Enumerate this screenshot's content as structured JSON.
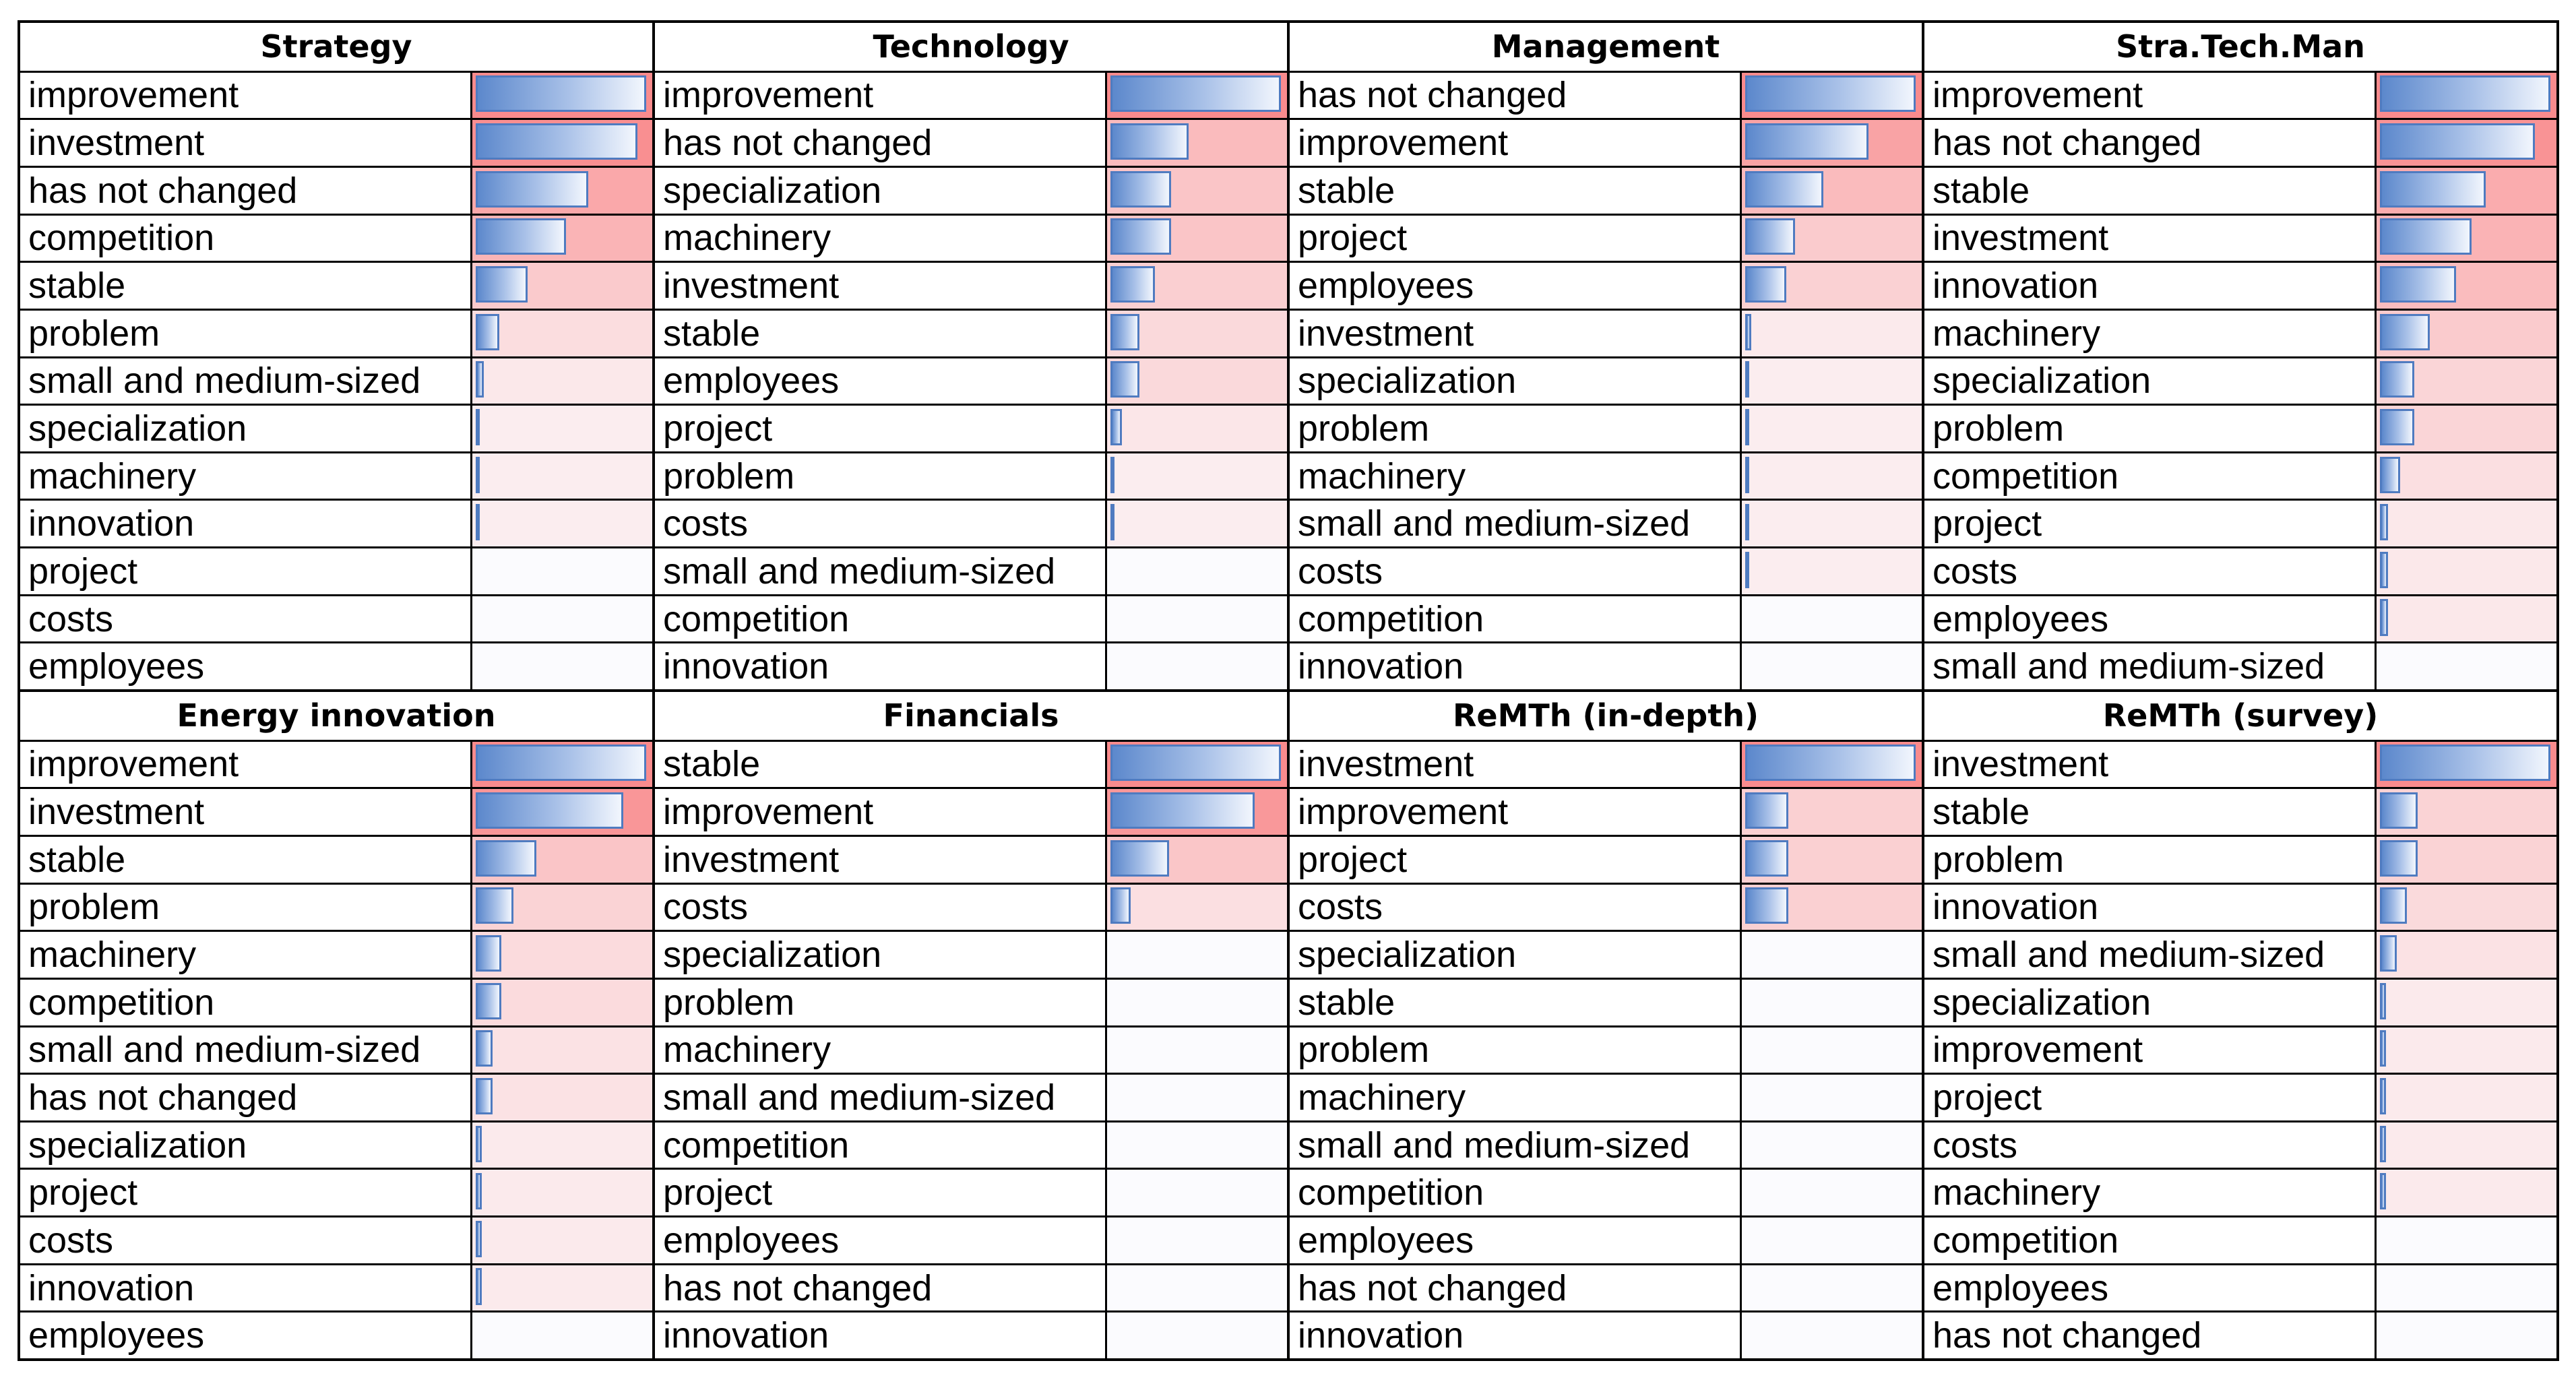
{
  "chart_data": {
    "type": "table",
    "bar_colors": {
      "bar_gradient_start": "#5c88cc",
      "bar_gradient_end": "#f2f6fd",
      "bar_border": "#4f7bc0"
    },
    "heat_colors": {
      "high": "#f98b8d",
      "low": "#fbf5f7"
    },
    "tables": [
      {
        "title": "Strategy",
        "rows": [
          {
            "term": "improvement",
            "value": 1.0
          },
          {
            "term": "investment",
            "value": 0.95
          },
          {
            "term": "has not changed",
            "value": 0.67
          },
          {
            "term": "competition",
            "value": 0.54
          },
          {
            "term": "stable",
            "value": 0.32
          },
          {
            "term": "problem",
            "value": 0.16
          },
          {
            "term": "small and medium-sized",
            "value": 0.07
          },
          {
            "term": "specialization",
            "value": 0.04
          },
          {
            "term": "machinery",
            "value": 0.04
          },
          {
            "term": "innovation",
            "value": 0.04
          },
          {
            "term": "project",
            "value": 0
          },
          {
            "term": "costs",
            "value": 0
          },
          {
            "term": "employees",
            "value": 0
          }
        ]
      },
      {
        "title": "Technology",
        "rows": [
          {
            "term": "improvement",
            "value": 1.0
          },
          {
            "term": "has not changed",
            "value": 0.47
          },
          {
            "term": "specialization",
            "value": 0.37
          },
          {
            "term": "machinery",
            "value": 0.37
          },
          {
            "term": "investment",
            "value": 0.28
          },
          {
            "term": "stable",
            "value": 0.19
          },
          {
            "term": "employees",
            "value": 0.19
          },
          {
            "term": "project",
            "value": 0.09
          },
          {
            "term": "problem",
            "value": 0.04
          },
          {
            "term": "costs",
            "value": 0.04
          },
          {
            "term": "small and medium-sized",
            "value": 0
          },
          {
            "term": "competition",
            "value": 0
          },
          {
            "term": "innovation",
            "value": 0
          }
        ]
      },
      {
        "title": "Management",
        "rows": [
          {
            "term": "has not changed",
            "value": 1.0
          },
          {
            "term": "improvement",
            "value": 0.73
          },
          {
            "term": "stable",
            "value": 0.47
          },
          {
            "term": "project",
            "value": 0.31
          },
          {
            "term": "employees",
            "value": 0.26
          },
          {
            "term": "investment",
            "value": 0.06
          },
          {
            "term": "specialization",
            "value": 0.04
          },
          {
            "term": "problem",
            "value": 0.04
          },
          {
            "term": "machinery",
            "value": 0.04
          },
          {
            "term": "small and medium-sized",
            "value": 0.04
          },
          {
            "term": "costs",
            "value": 0.04
          },
          {
            "term": "competition",
            "value": 0
          },
          {
            "term": "innovation",
            "value": 0
          }
        ]
      },
      {
        "title": "Stra.Tech.Man",
        "rows": [
          {
            "term": "improvement",
            "value": 1.0
          },
          {
            "term": "has not changed",
            "value": 0.91
          },
          {
            "term": "stable",
            "value": 0.63
          },
          {
            "term": "investment",
            "value": 0.55
          },
          {
            "term": "innovation",
            "value": 0.46
          },
          {
            "term": "machinery",
            "value": 0.31
          },
          {
            "term": "specialization",
            "value": 0.22
          },
          {
            "term": "problem",
            "value": 0.22
          },
          {
            "term": "competition",
            "value": 0.14
          },
          {
            "term": "project",
            "value": 0.07
          },
          {
            "term": "costs",
            "value": 0.07
          },
          {
            "term": "employees",
            "value": 0.07
          },
          {
            "term": "small and medium-sized",
            "value": 0
          }
        ]
      },
      {
        "title": "Energy innovation",
        "rows": [
          {
            "term": "improvement",
            "value": 1.0
          },
          {
            "term": "investment",
            "value": 0.87
          },
          {
            "term": "stable",
            "value": 0.37
          },
          {
            "term": "problem",
            "value": 0.24
          },
          {
            "term": "machinery",
            "value": 0.17
          },
          {
            "term": "competition",
            "value": 0.17
          },
          {
            "term": "small and medium-sized",
            "value": 0.12
          },
          {
            "term": "has not changed",
            "value": 0.12
          },
          {
            "term": "specialization",
            "value": 0.06
          },
          {
            "term": "project",
            "value": 0.06
          },
          {
            "term": "costs",
            "value": 0.06
          },
          {
            "term": "innovation",
            "value": 0.06
          },
          {
            "term": "employees",
            "value": 0
          }
        ]
      },
      {
        "title": "Financials",
        "rows": [
          {
            "term": "stable",
            "value": 1.0
          },
          {
            "term": "improvement",
            "value": 0.85
          },
          {
            "term": "investment",
            "value": 0.36
          },
          {
            "term": "costs",
            "value": 0.14
          },
          {
            "term": "specialization",
            "value": 0
          },
          {
            "term": "problem",
            "value": 0
          },
          {
            "term": "machinery",
            "value": 0
          },
          {
            "term": "small and medium-sized",
            "value": 0
          },
          {
            "term": "competition",
            "value": 0
          },
          {
            "term": "project",
            "value": 0
          },
          {
            "term": "employees",
            "value": 0
          },
          {
            "term": "has not changed",
            "value": 0
          },
          {
            "term": "innovation",
            "value": 0
          }
        ]
      },
      {
        "title": "ReMTh (in-depth)",
        "rows": [
          {
            "term": "investment",
            "value": 1.0
          },
          {
            "term": "improvement",
            "value": 0.27
          },
          {
            "term": "project",
            "value": 0.27
          },
          {
            "term": "costs",
            "value": 0.27
          },
          {
            "term": "specialization",
            "value": 0
          },
          {
            "term": "stable",
            "value": 0
          },
          {
            "term": "problem",
            "value": 0
          },
          {
            "term": "machinery",
            "value": 0
          },
          {
            "term": "small and medium-sized",
            "value": 0
          },
          {
            "term": "competition",
            "value": 0
          },
          {
            "term": "employees",
            "value": 0
          },
          {
            "term": "has not changed",
            "value": 0
          },
          {
            "term": "innovation",
            "value": 0
          }
        ]
      },
      {
        "title": "ReMTh (survey)",
        "rows": [
          {
            "term": "investment",
            "value": 1.0
          },
          {
            "term": "stable",
            "value": 0.24
          },
          {
            "term": "problem",
            "value": 0.24
          },
          {
            "term": "innovation",
            "value": 0.18
          },
          {
            "term": "small and medium-sized",
            "value": 0.12
          },
          {
            "term": "specialization",
            "value": 0.06
          },
          {
            "term": "improvement",
            "value": 0.06
          },
          {
            "term": "project",
            "value": 0.06
          },
          {
            "term": "costs",
            "value": 0.06
          },
          {
            "term": "machinery",
            "value": 0.06
          },
          {
            "term": "competition",
            "value": 0
          },
          {
            "term": "employees",
            "value": 0
          },
          {
            "term": "has not changed",
            "value": 0
          }
        ]
      }
    ]
  }
}
